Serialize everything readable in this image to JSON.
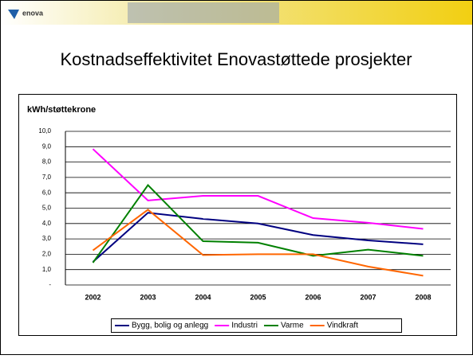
{
  "logo": "enova",
  "slide_title": "Kostnadseffektivitet Enovastøttede prosjekter",
  "chart_data": {
    "type": "line",
    "title": "kWh/støttekrone",
    "categories": [
      "2002",
      "2003",
      "2004",
      "2005",
      "2006",
      "2007",
      "2008"
    ],
    "series": [
      {
        "name": "Bygg, bolig og anlegg",
        "color": "#000080",
        "values": [
          1.5,
          4.7,
          4.3,
          4.0,
          3.25,
          2.9,
          2.65
        ]
      },
      {
        "name": "Industri",
        "color": "#ff00ff",
        "values": [
          8.85,
          5.5,
          5.8,
          5.8,
          4.35,
          4.05,
          3.65
        ]
      },
      {
        "name": "Varme",
        "color": "#008000",
        "values": [
          1.45,
          6.5,
          2.85,
          2.75,
          1.9,
          2.3,
          1.9
        ]
      },
      {
        "name": "Vindkraft",
        "color": "#ff6600",
        "values": [
          2.25,
          4.9,
          1.95,
          2.0,
          2.0,
          1.2,
          0.6
        ]
      }
    ],
    "ylim": [
      0,
      10
    ],
    "yticks": [
      {
        "value": 0,
        "label": "-"
      },
      {
        "value": 1,
        "label": "1,0"
      },
      {
        "value": 2,
        "label": "2,0"
      },
      {
        "value": 3,
        "label": "3,0"
      },
      {
        "value": 4,
        "label": "4,0"
      },
      {
        "value": 5,
        "label": "5,0"
      },
      {
        "value": 6,
        "label": "6,0"
      },
      {
        "value": 7,
        "label": "7,0"
      },
      {
        "value": 8,
        "label": "8,0"
      },
      {
        "value": 9,
        "label": "9,0"
      },
      {
        "value": 10,
        "label": "10,0"
      }
    ],
    "grid": true
  }
}
